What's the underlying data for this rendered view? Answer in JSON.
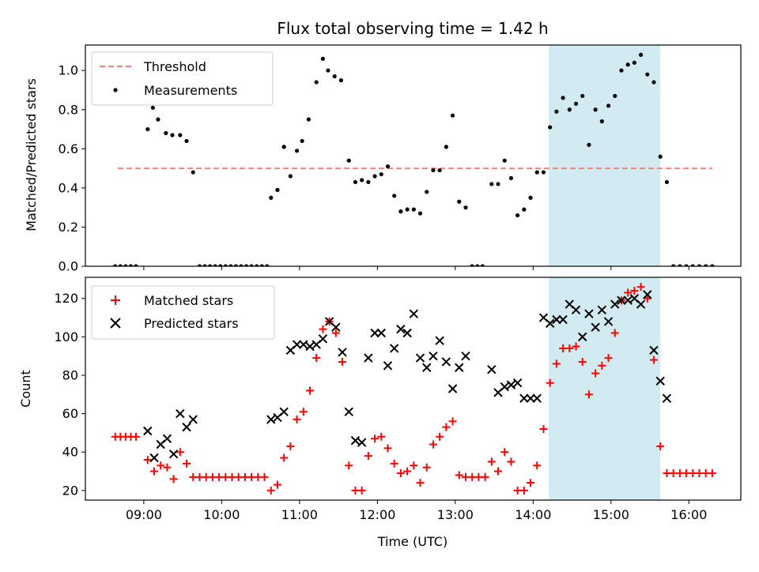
{
  "chart_data": [
    {
      "type": "scatter",
      "title": "Flux total observing time = 1.42 h",
      "xlabel": "",
      "ylabel": "Matched/Predicted stars",
      "ylim": [
        0,
        1.13
      ],
      "xlim": [
        "08:15",
        "16:40"
      ],
      "yticks": [
        "0.0",
        "0.2",
        "0.4",
        "0.6",
        "0.8",
        "1.0"
      ],
      "shaded_region": {
        "from": "14:12",
        "to": "15:38",
        "color": "#add8e6"
      },
      "legend": {
        "placement": "top-left",
        "entries": [
          "Threshold",
          "Measurements"
        ]
      },
      "threshold": {
        "name": "Threshold",
        "value": 0.5,
        "from": "08:40",
        "to": "16:18",
        "color": "#ff7f7f"
      },
      "series": [
        {
          "name": "Measurements",
          "color": "#000000",
          "points": [
            [
              "08:38",
              0
            ],
            [
              "08:42",
              0
            ],
            [
              "08:46",
              0
            ],
            [
              "08:50",
              0
            ],
            [
              "08:54",
              0
            ],
            [
              "09:03",
              0.7
            ],
            [
              "09:07",
              0.81
            ],
            [
              "09:11",
              0.75
            ],
            [
              "09:17",
              0.68
            ],
            [
              "09:22",
              0.67
            ],
            [
              "09:28",
              0.67
            ],
            [
              "09:33",
              0.64
            ],
            [
              "09:38",
              0.48
            ],
            [
              "09:43",
              0
            ],
            [
              "09:47",
              0
            ],
            [
              "09:51",
              0
            ],
            [
              "09:55",
              0
            ],
            [
              "09:59",
              0
            ],
            [
              "10:03",
              0
            ],
            [
              "10:07",
              0
            ],
            [
              "10:11",
              0
            ],
            [
              "10:15",
              0
            ],
            [
              "10:19",
              0
            ],
            [
              "10:23",
              0
            ],
            [
              "10:27",
              0
            ],
            [
              "10:31",
              0
            ],
            [
              "10:35",
              0
            ],
            [
              "10:38",
              0.35
            ],
            [
              "10:43",
              0.39
            ],
            [
              "10:48",
              0.61
            ],
            [
              "10:53",
              0.46
            ],
            [
              "10:58",
              0.59
            ],
            [
              "11:02",
              0.64
            ],
            [
              "11:07",
              0.75
            ],
            [
              "11:13",
              0.94
            ],
            [
              "11:18",
              1.06
            ],
            [
              "11:22",
              1.0
            ],
            [
              "11:27",
              0.97
            ],
            [
              "11:32",
              0.95
            ],
            [
              "11:38",
              0.54
            ],
            [
              "11:43",
              0.43
            ],
            [
              "11:48",
              0.44
            ],
            [
              "11:53",
              0.43
            ],
            [
              "11:58",
              0.46
            ],
            [
              "12:03",
              0.47
            ],
            [
              "12:08",
              0.51
            ],
            [
              "12:13",
              0.36
            ],
            [
              "12:18",
              0.28
            ],
            [
              "12:23",
              0.29
            ],
            [
              "12:28",
              0.29
            ],
            [
              "12:33",
              0.27
            ],
            [
              "12:38",
              0.38
            ],
            [
              "12:43",
              0.49
            ],
            [
              "12:48",
              0.49
            ],
            [
              "12:53",
              0.61
            ],
            [
              "12:58",
              0.77
            ],
            [
              "13:03",
              0.33
            ],
            [
              "13:08",
              0.3
            ],
            [
              "13:13",
              0
            ],
            [
              "13:17",
              0
            ],
            [
              "13:21",
              0
            ],
            [
              "13:28",
              0.42
            ],
            [
              "13:33",
              0.42
            ],
            [
              "13:38",
              0.54
            ],
            [
              "13:43",
              0.45
            ],
            [
              "13:48",
              0.26
            ],
            [
              "13:53",
              0.29
            ],
            [
              "13:58",
              0.35
            ],
            [
              "14:03",
              0.48
            ],
            [
              "14:08",
              0.48
            ],
            [
              "14:13",
              0.71
            ],
            [
              "14:18",
              0.79
            ],
            [
              "14:23",
              0.86
            ],
            [
              "14:28",
              0.8
            ],
            [
              "14:33",
              0.83
            ],
            [
              "14:38",
              0.87
            ],
            [
              "14:43",
              0.62
            ],
            [
              "14:48",
              0.8
            ],
            [
              "14:53",
              0.74
            ],
            [
              "14:58",
              0.82
            ],
            [
              "15:03",
              0.87
            ],
            [
              "15:08",
              1.0
            ],
            [
              "15:13",
              1.03
            ],
            [
              "15:18",
              1.04
            ],
            [
              "15:23",
              1.08
            ],
            [
              "15:28",
              0.98
            ],
            [
              "15:33",
              0.94
            ],
            [
              "15:38",
              0.56
            ],
            [
              "15:43",
              0.43
            ],
            [
              "15:48",
              0
            ],
            [
              "15:53",
              0
            ],
            [
              "15:58",
              0
            ],
            [
              "16:03",
              0
            ],
            [
              "16:08",
              0
            ],
            [
              "16:13",
              0
            ],
            [
              "16:18",
              0
            ]
          ]
        }
      ]
    },
    {
      "type": "scatter",
      "title": "",
      "xlabel": "Time (UTC)",
      "ylabel": "Count",
      "ylim": [
        15,
        131
      ],
      "xlim": [
        "08:15",
        "16:40"
      ],
      "yticks": [
        "20",
        "40",
        "60",
        "80",
        "100",
        "120"
      ],
      "xticks": [
        "09:00",
        "10:00",
        "11:00",
        "12:00",
        "13:00",
        "14:00",
        "15:00",
        "16:00"
      ],
      "shaded_region": {
        "from": "14:12",
        "to": "15:38",
        "color": "#add8e6"
      },
      "legend": {
        "placement": "top-left",
        "entries": [
          "Matched stars",
          "Predicted stars"
        ]
      },
      "series": [
        {
          "name": "Matched stars",
          "marker": "plus",
          "color": "#ff0000",
          "points": [
            [
              "08:38",
              48
            ],
            [
              "08:42",
              48
            ],
            [
              "08:46",
              48
            ],
            [
              "08:50",
              48
            ],
            [
              "08:54",
              48
            ],
            [
              "09:03",
              36
            ],
            [
              "09:08",
              30
            ],
            [
              "09:13",
              33
            ],
            [
              "09:18",
              32
            ],
            [
              "09:23",
              26
            ],
            [
              "09:28",
              40
            ],
            [
              "09:33",
              34
            ],
            [
              "09:38",
              27
            ],
            [
              "09:43",
              27
            ],
            [
              "09:48",
              27
            ],
            [
              "09:53",
              27
            ],
            [
              "09:58",
              27
            ],
            [
              "10:03",
              27
            ],
            [
              "10:08",
              27
            ],
            [
              "10:13",
              27
            ],
            [
              "10:18",
              27
            ],
            [
              "10:23",
              27
            ],
            [
              "10:28",
              27
            ],
            [
              "10:33",
              27
            ],
            [
              "10:38",
              20
            ],
            [
              "10:43",
              23
            ],
            [
              "10:48",
              37
            ],
            [
              "10:53",
              43
            ],
            [
              "10:58",
              57
            ],
            [
              "11:03",
              61
            ],
            [
              "11:08",
              72
            ],
            [
              "11:13",
              89
            ],
            [
              "11:18",
              104
            ],
            [
              "11:23",
              108
            ],
            [
              "11:28",
              102
            ],
            [
              "11:33",
              87
            ],
            [
              "11:38",
              33
            ],
            [
              "11:43",
              20
            ],
            [
              "11:48",
              20
            ],
            [
              "11:53",
              38
            ],
            [
              "11:58",
              47
            ],
            [
              "12:03",
              48
            ],
            [
              "12:08",
              42
            ],
            [
              "12:13",
              34
            ],
            [
              "12:18",
              29
            ],
            [
              "12:23",
              30
            ],
            [
              "12:28",
              33
            ],
            [
              "12:33",
              24
            ],
            [
              "12:38",
              32
            ],
            [
              "12:43",
              44
            ],
            [
              "12:48",
              48
            ],
            [
              "12:53",
              53
            ],
            [
              "12:58",
              56
            ],
            [
              "13:03",
              28
            ],
            [
              "13:08",
              27
            ],
            [
              "13:13",
              27
            ],
            [
              "13:18",
              27
            ],
            [
              "13:23",
              27
            ],
            [
              "13:28",
              35
            ],
            [
              "13:33",
              30
            ],
            [
              "13:38",
              40
            ],
            [
              "13:43",
              35
            ],
            [
              "13:48",
              20
            ],
            [
              "13:53",
              20
            ],
            [
              "13:58",
              24
            ],
            [
              "14:03",
              33
            ],
            [
              "14:08",
              52
            ],
            [
              "14:13",
              76
            ],
            [
              "14:18",
              86
            ],
            [
              "14:23",
              94
            ],
            [
              "14:28",
              94
            ],
            [
              "14:33",
              95
            ],
            [
              "14:38",
              87
            ],
            [
              "14:43",
              70
            ],
            [
              "14:48",
              81
            ],
            [
              "14:53",
              85
            ],
            [
              "14:58",
              89
            ],
            [
              "15:03",
              102
            ],
            [
              "15:08",
              119
            ],
            [
              "15:13",
              123
            ],
            [
              "15:18",
              124
            ],
            [
              "15:23",
              126
            ],
            [
              "15:28",
              120
            ],
            [
              "15:33",
              88
            ],
            [
              "15:38",
              43
            ],
            [
              "15:43",
              29
            ],
            [
              "15:48",
              29
            ],
            [
              "15:53",
              29
            ],
            [
              "15:58",
              29
            ],
            [
              "16:03",
              29
            ],
            [
              "16:08",
              29
            ],
            [
              "16:13",
              29
            ],
            [
              "16:18",
              29
            ]
          ]
        },
        {
          "name": "Predicted stars",
          "marker": "x",
          "color": "#000000",
          "points": [
            [
              "09:03",
              51
            ],
            [
              "09:08",
              37
            ],
            [
              "09:13",
              44
            ],
            [
              "09:18",
              47
            ],
            [
              "09:23",
              39
            ],
            [
              "09:28",
              60
            ],
            [
              "09:33",
              53
            ],
            [
              "09:38",
              57
            ],
            [
              "10:38",
              57
            ],
            [
              "10:43",
              58
            ],
            [
              "10:48",
              61
            ],
            [
              "10:53",
              93
            ],
            [
              "10:58",
              96
            ],
            [
              "11:03",
              96
            ],
            [
              "11:08",
              95
            ],
            [
              "11:13",
              96
            ],
            [
              "11:18",
              99
            ],
            [
              "11:23",
              108
            ],
            [
              "11:28",
              105
            ],
            [
              "11:33",
              92
            ],
            [
              "11:38",
              61
            ],
            [
              "11:43",
              46
            ],
            [
              "11:48",
              45
            ],
            [
              "11:53",
              89
            ],
            [
              "11:58",
              102
            ],
            [
              "12:03",
              102
            ],
            [
              "12:08",
              85
            ],
            [
              "12:13",
              94
            ],
            [
              "12:18",
              104
            ],
            [
              "12:23",
              102
            ],
            [
              "12:28",
              112
            ],
            [
              "12:33",
              89
            ],
            [
              "12:38",
              84
            ],
            [
              "12:43",
              90
            ],
            [
              "12:48",
              98
            ],
            [
              "12:53",
              87
            ],
            [
              "12:58",
              73
            ],
            [
              "13:03",
              84
            ],
            [
              "13:08",
              90
            ],
            [
              "13:28",
              83
            ],
            [
              "13:33",
              71
            ],
            [
              "13:38",
              74
            ],
            [
              "13:43",
              75
            ],
            [
              "13:48",
              76
            ],
            [
              "13:53",
              68
            ],
            [
              "13:58",
              68
            ],
            [
              "14:03",
              68
            ],
            [
              "14:08",
              110
            ],
            [
              "14:13",
              107
            ],
            [
              "14:18",
              109
            ],
            [
              "14:23",
              109
            ],
            [
              "14:28",
              117
            ],
            [
              "14:33",
              114
            ],
            [
              "14:38",
              100
            ],
            [
              "14:43",
              112
            ],
            [
              "14:48",
              105
            ],
            [
              "14:53",
              114
            ],
            [
              "14:58",
              108
            ],
            [
              "15:03",
              117
            ],
            [
              "15:08",
              119
            ],
            [
              "15:13",
              119
            ],
            [
              "15:18",
              120
            ],
            [
              "15:23",
              117
            ],
            [
              "15:28",
              122
            ],
            [
              "15:33",
              93
            ],
            [
              "15:38",
              77
            ],
            [
              "15:43",
              68
            ]
          ]
        }
      ]
    }
  ]
}
